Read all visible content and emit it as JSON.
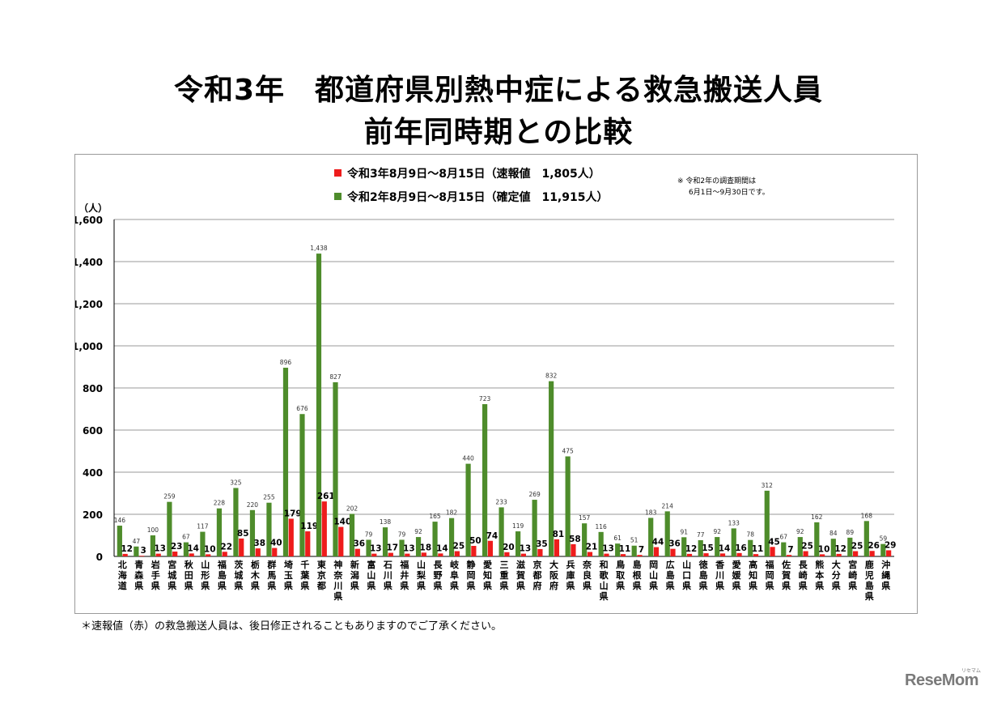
{
  "title_line1": "令和3年　都道府県別熱中症による救急搬送人員",
  "title_line2": "前年同時期との比較",
  "legend": {
    "current": "令和3年8月9日～8月15日（速報値　1,805人）",
    "previous": "令和2年8月9日～8月15日（確定値　11,915人）"
  },
  "note": [
    "※ 令和2年の調査期間は",
    "6月1日～9月30日です。"
  ],
  "footnote": "＊速報値（赤）の救急搬送人員は、後日修正されることもありますのでご了承ください。",
  "logo": "ReseMom",
  "logo_sub": "リセマム",
  "colors": {
    "current": "#ee1c1c",
    "previous": "#4e8c2b"
  },
  "chart_data": {
    "type": "bar",
    "ylabel": "（人）",
    "ylim": [
      0,
      1600
    ],
    "yticks": [
      0,
      200,
      400,
      600,
      800,
      1000,
      1200,
      1400,
      1600
    ],
    "ytick_labels": [
      "0",
      "200",
      "400",
      "600",
      "800",
      "1,000",
      "1,200",
      "1,400",
      "1,600"
    ],
    "grid": true,
    "legend_position": "top",
    "categories": [
      "北海道",
      "青森県",
      "岩手県",
      "宮城県",
      "秋田県",
      "山形県",
      "福島県",
      "茨城県",
      "栃木県",
      "群馬県",
      "埼玉県",
      "千葉県",
      "東京都",
      "神奈川県",
      "新潟県",
      "富山県",
      "石川県",
      "福井県",
      "山梨県",
      "長野県",
      "岐阜県",
      "静岡県",
      "愛知県",
      "三重県",
      "滋賀県",
      "京都府",
      "大阪府",
      "兵庫県",
      "奈良県",
      "和歌山県",
      "鳥取県",
      "島根県",
      "岡山県",
      "広島県",
      "山口県",
      "徳島県",
      "香川県",
      "愛媛県",
      "高知県",
      "福岡県",
      "佐賀県",
      "長崎県",
      "熊本県",
      "大分県",
      "宮崎県",
      "鹿児島県",
      "沖縄県"
    ],
    "series": [
      {
        "name": "令和2年8月9日～8月15日（確定値　11,915人）",
        "values": [
          146,
          47,
          100,
          259,
          67,
          117,
          228,
          325,
          220,
          255,
          896,
          676,
          1438,
          827,
          202,
          79,
          138,
          79,
          92,
          165,
          182,
          440,
          723,
          233,
          119,
          269,
          832,
          475,
          157,
          116,
          61,
          51,
          183,
          214,
          91,
          77,
          92,
          133,
          78,
          312,
          67,
          92,
          162,
          84,
          89,
          168,
          59
        ],
        "labels": [
          "146",
          "47",
          "100",
          "259",
          "67",
          "117",
          "228",
          "325",
          "220",
          "255",
          "896",
          "676",
          "1,438",
          "827",
          "202",
          "79",
          "138",
          "79",
          "92",
          "165",
          "182",
          "440",
          "723",
          "233",
          "119",
          "269",
          "832",
          "475",
          "157",
          "116",
          "61",
          "51",
          "183",
          "214",
          "91",
          "77",
          "92",
          "133",
          "78",
          "312",
          "67",
          "92",
          "162",
          "84",
          "89",
          "168",
          "59"
        ]
      },
      {
        "name": "令和3年8月9日～8月15日（速報値　1,805人）",
        "values": [
          12,
          3,
          13,
          23,
          14,
          10,
          22,
          85,
          38,
          40,
          179,
          119,
          261,
          140,
          36,
          13,
          17,
          13,
          18,
          14,
          25,
          50,
          74,
          20,
          13,
          35,
          81,
          58,
          21,
          13,
          11,
          7,
          44,
          36,
          12,
          15,
          14,
          16,
          11,
          45,
          7,
          25,
          10,
          12,
          25,
          26,
          29
        ],
        "labels": [
          "12",
          "3",
          "13",
          "23",
          "14",
          "10",
          "22",
          "85",
          "38",
          "40",
          "179",
          "119",
          "261",
          "140",
          "36",
          "13",
          "17",
          "13",
          "18",
          "14",
          "25",
          "50",
          "74",
          "20",
          "13",
          "35",
          "81",
          "58",
          "21",
          "13",
          "11",
          "7",
          "44",
          "36",
          "12",
          "15",
          "14",
          "16",
          "11",
          "45",
          "7",
          "25",
          "10",
          "12",
          "25",
          "26",
          "29"
        ]
      }
    ]
  }
}
